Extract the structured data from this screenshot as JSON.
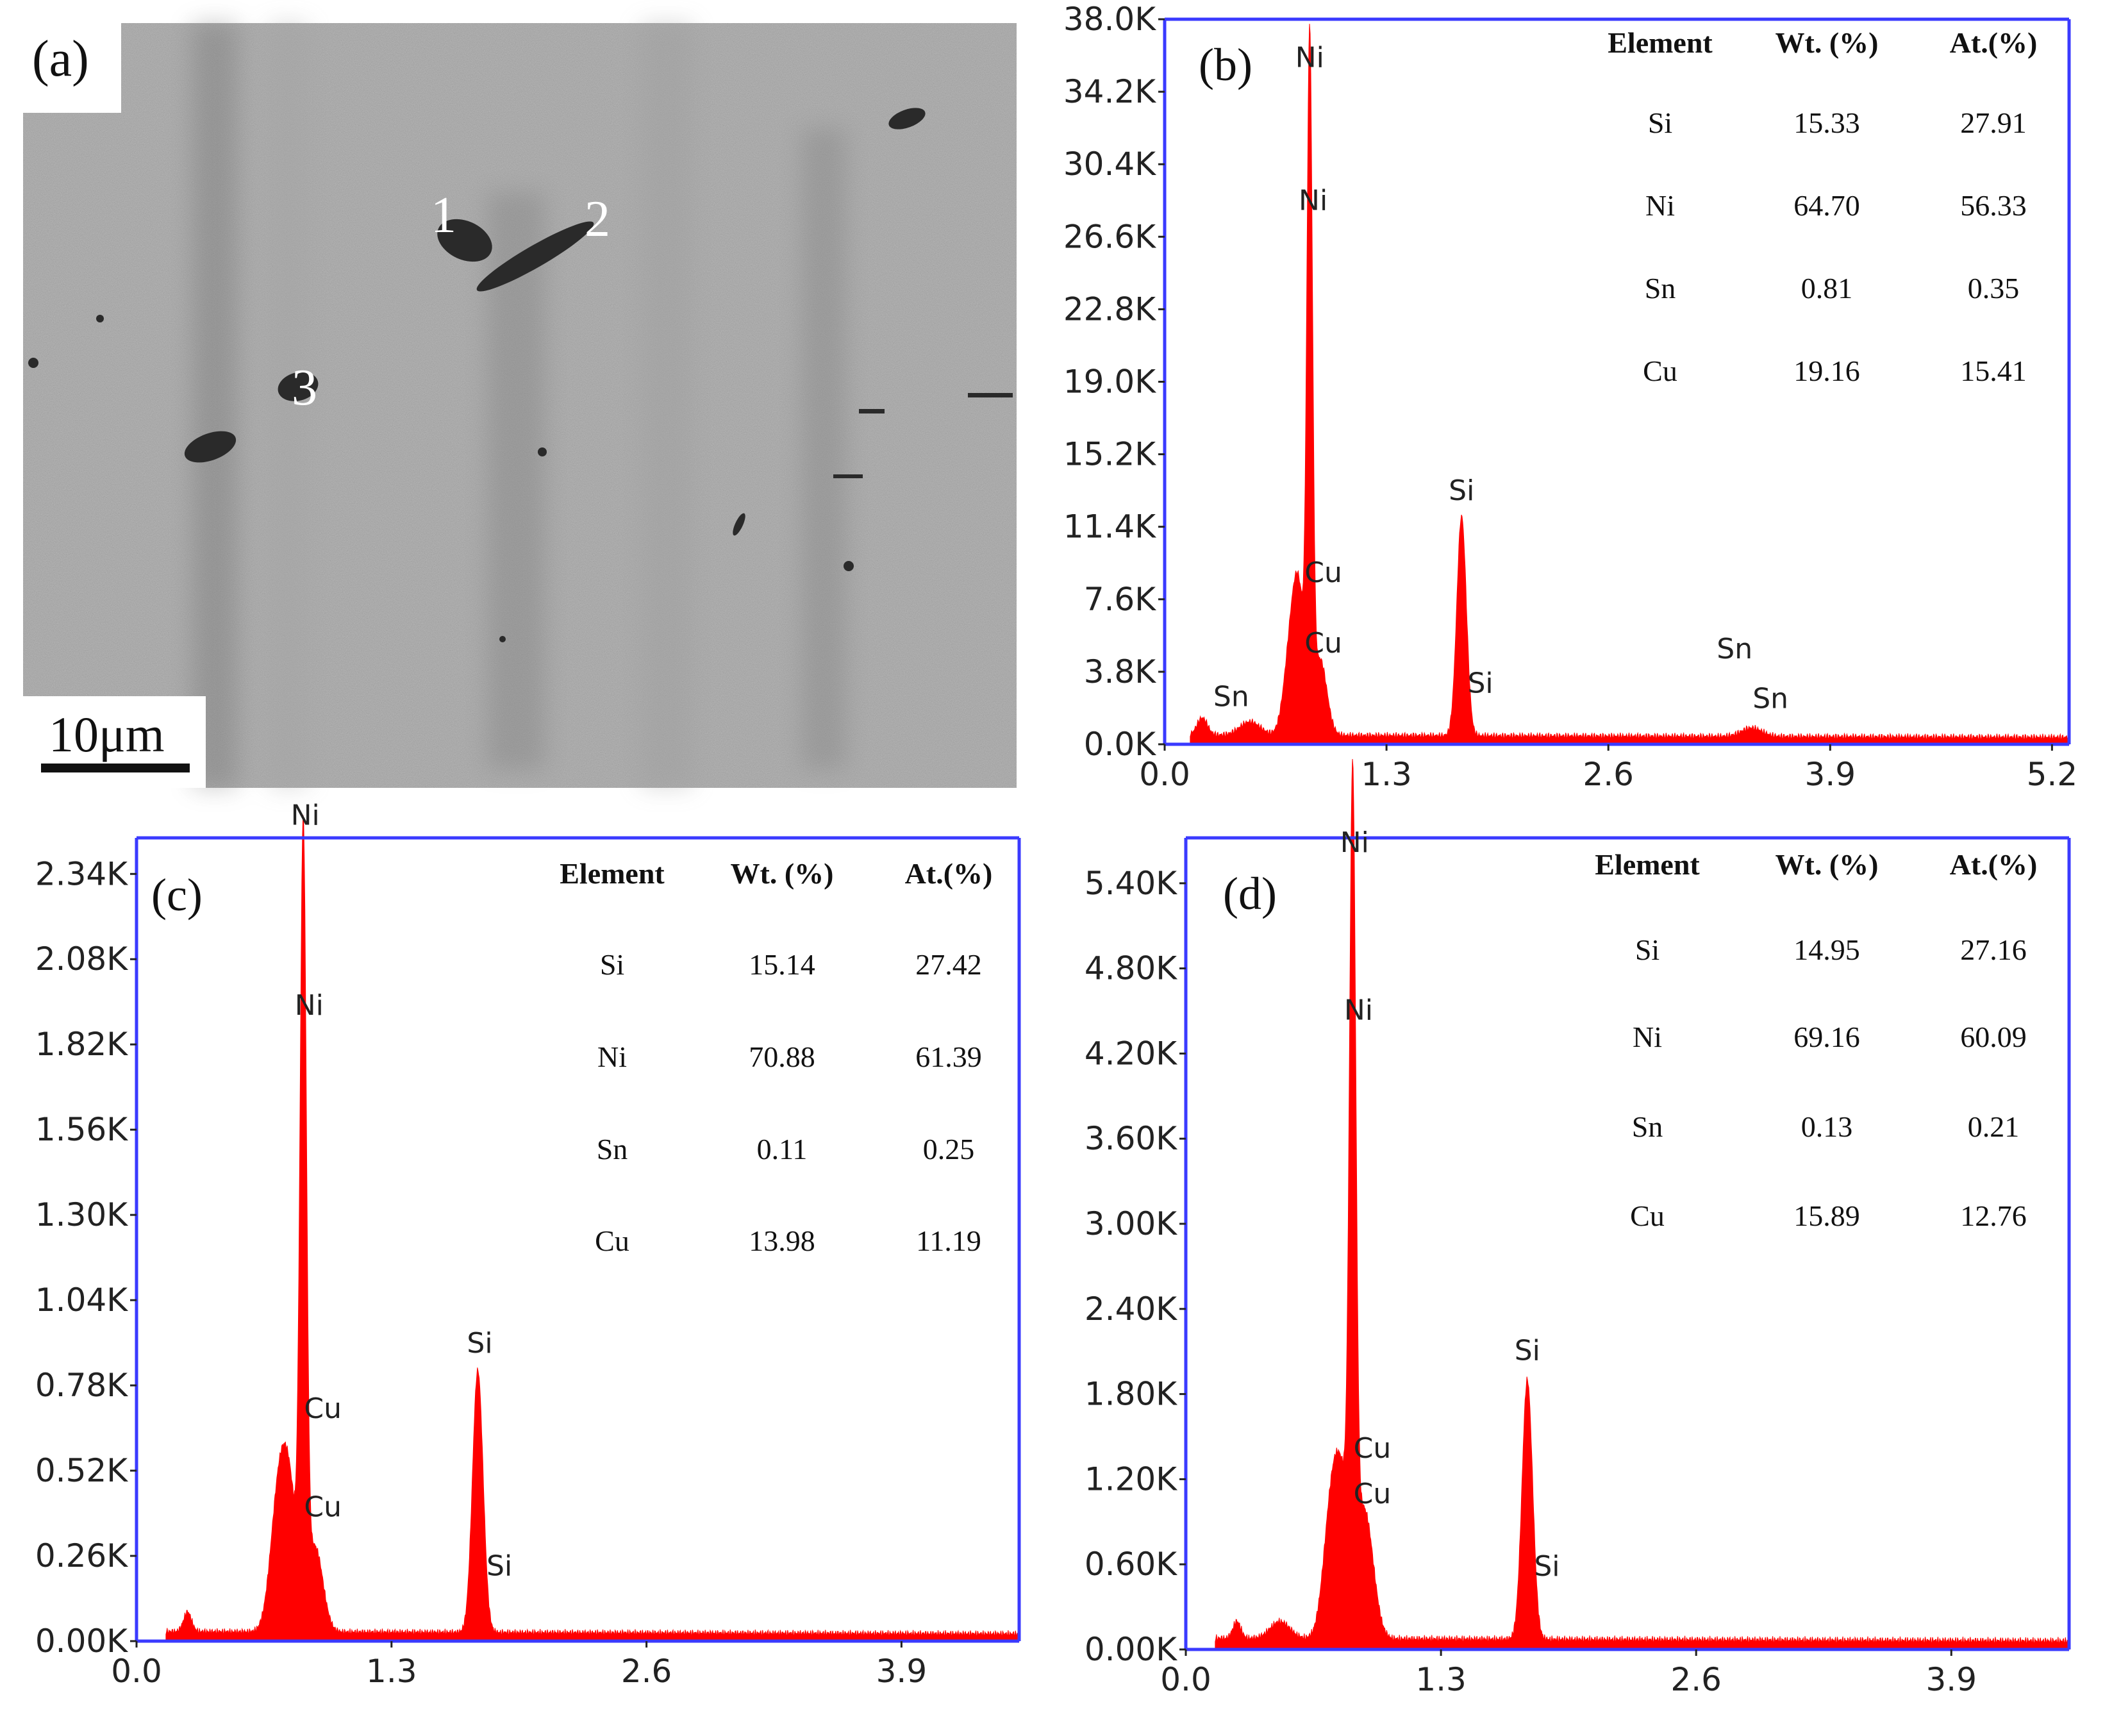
{
  "panel_a": {
    "label": "(a)",
    "scale_bar": "10μm",
    "markers": [
      "1",
      "2",
      "3"
    ]
  },
  "chart_data": [
    {
      "type": "area",
      "panel": "(b)",
      "color": "#ff0000",
      "axis_color": "#3a3aff",
      "xlim": [
        0.0,
        5.3
      ],
      "ylim": [
        0,
        38000
      ],
      "x_ticks": [
        "0.0",
        "1.3",
        "2.6",
        "3.9",
        "5.2"
      ],
      "x_tick_values": [
        0.0,
        1.3,
        2.6,
        3.9,
        5.2
      ],
      "y_ticks": [
        "0.0K",
        "3.8K",
        "7.6K",
        "11.4K",
        "15.2K",
        "19.0K",
        "22.8K",
        "26.6K",
        "30.4K",
        "34.2K",
        "38.0K"
      ],
      "y_tick_values": [
        0,
        3800,
        7600,
        11400,
        15200,
        19000,
        22800,
        26600,
        30400,
        34200,
        38000
      ],
      "peaks": [
        {
          "x": 0.22,
          "y": 900,
          "w": 0.03
        },
        {
          "x": 0.5,
          "y": 700,
          "w": 0.06
        },
        {
          "x": 0.74,
          "y": 4500,
          "w": 0.04
        },
        {
          "x": 0.79,
          "y": 6000,
          "w": 0.035
        },
        {
          "x": 0.85,
          "y": 34500,
          "w": 0.016
        },
        {
          "x": 0.91,
          "y": 4000,
          "w": 0.04
        },
        {
          "x": 1.74,
          "y": 11500,
          "w": 0.028
        },
        {
          "x": 3.44,
          "y": 450,
          "w": 0.06
        }
      ],
      "baseline": 500,
      "peak_labels": [
        {
          "text": "Ni",
          "x": 0.85,
          "y": 35500
        },
        {
          "text": "Ni",
          "x": 0.87,
          "y": 28000
        },
        {
          "text": "Cu",
          "x": 0.93,
          "y": 8500
        },
        {
          "text": "Cu",
          "x": 0.93,
          "y": 4800
        },
        {
          "text": "Sn",
          "x": 0.39,
          "y": 2000
        },
        {
          "text": "Si",
          "x": 1.74,
          "y": 12800
        },
        {
          "text": "Si",
          "x": 1.85,
          "y": 2700
        },
        {
          "text": "Sn",
          "x": 3.34,
          "y": 4500
        },
        {
          "text": "Sn",
          "x": 3.55,
          "y": 1900
        }
      ],
      "table": {
        "headers": [
          "Element",
          "Wt. (%)",
          "At.(%)"
        ],
        "rows": [
          [
            "Si",
            "15.33",
            "27.91"
          ],
          [
            "Ni",
            "64.70",
            "56.33"
          ],
          [
            "Sn",
            "0.81",
            "0.35"
          ],
          [
            "Cu",
            "19.16",
            "15.41"
          ]
        ]
      }
    },
    {
      "type": "area",
      "panel": "(c)",
      "color": "#ff0000",
      "axis_color": "#3a3aff",
      "xlim": [
        0.0,
        4.5
      ],
      "ylim": [
        0,
        2450
      ],
      "x_ticks": [
        "0.0",
        "1.3",
        "2.6",
        "3.9"
      ],
      "x_tick_values": [
        0.0,
        1.3,
        2.6,
        3.9
      ],
      "y_ticks": [
        "0.00K",
        "0.26K",
        "0.52K",
        "0.78K",
        "1.04K",
        "1.30K",
        "1.56K",
        "1.82K",
        "2.08K",
        "2.34K"
      ],
      "y_tick_values": [
        0,
        260,
        520,
        780,
        1040,
        1300,
        1560,
        1820,
        2080,
        2340
      ],
      "peaks": [
        {
          "x": 0.26,
          "y": 60,
          "w": 0.02
        },
        {
          "x": 0.72,
          "y": 360,
          "w": 0.04
        },
        {
          "x": 0.78,
          "y": 400,
          "w": 0.04
        },
        {
          "x": 0.85,
          "y": 2320,
          "w": 0.016
        },
        {
          "x": 0.91,
          "y": 260,
          "w": 0.04
        },
        {
          "x": 1.74,
          "y": 800,
          "w": 0.027
        }
      ],
      "baseline": 30,
      "peak_labels": [
        {
          "text": "Ni",
          "x": 0.86,
          "y": 2490
        },
        {
          "text": "Ni",
          "x": 0.88,
          "y": 1910
        },
        {
          "text": "Cu",
          "x": 0.95,
          "y": 680
        },
        {
          "text": "Cu",
          "x": 0.95,
          "y": 380
        },
        {
          "text": "Si",
          "x": 1.75,
          "y": 880
        },
        {
          "text": "Si",
          "x": 1.85,
          "y": 200
        }
      ],
      "table": {
        "headers": [
          "Element",
          "Wt. (%)",
          "At.(%)"
        ],
        "rows": [
          [
            "Si",
            "15.14",
            "27.42"
          ],
          [
            "Ni",
            "70.88",
            "61.39"
          ],
          [
            "Sn",
            "0.11",
            "0.25"
          ],
          [
            "Cu",
            "13.98",
            "11.19"
          ]
        ]
      }
    },
    {
      "type": "area",
      "panel": "(d)",
      "color": "#ff0000",
      "axis_color": "#3a3aff",
      "xlim": [
        0.0,
        4.5
      ],
      "ylim": [
        0,
        5720
      ],
      "x_ticks": [
        "0.0",
        "1.3",
        "2.6",
        "3.9"
      ],
      "x_tick_values": [
        0.0,
        1.3,
        2.6,
        3.9
      ],
      "y_ticks": [
        "0.00K",
        "0.60K",
        "1.20K",
        "1.80K",
        "2.40K",
        "3.00K",
        "3.60K",
        "4.20K",
        "4.80K",
        "5.40K"
      ],
      "y_tick_values": [
        0,
        600,
        1200,
        1800,
        2400,
        3000,
        3600,
        4200,
        4800,
        5400
      ],
      "peaks": [
        {
          "x": 0.26,
          "y": 120,
          "w": 0.02
        },
        {
          "x": 0.48,
          "y": 120,
          "w": 0.05
        },
        {
          "x": 0.74,
          "y": 840,
          "w": 0.04
        },
        {
          "x": 0.8,
          "y": 900,
          "w": 0.04
        },
        {
          "x": 0.85,
          "y": 5400,
          "w": 0.016
        },
        {
          "x": 0.91,
          "y": 900,
          "w": 0.045
        },
        {
          "x": 1.74,
          "y": 1830,
          "w": 0.027
        }
      ],
      "baseline": 80,
      "peak_labels": [
        {
          "text": "Ni",
          "x": 0.86,
          "y": 5620
        },
        {
          "text": "Ni",
          "x": 0.88,
          "y": 4440
        },
        {
          "text": "Cu",
          "x": 0.95,
          "y": 1350
        },
        {
          "text": "Cu",
          "x": 0.95,
          "y": 1030
        },
        {
          "text": "Si",
          "x": 1.74,
          "y": 2040
        },
        {
          "text": "Si",
          "x": 1.84,
          "y": 520
        }
      ],
      "table": {
        "headers": [
          "Element",
          "Wt. (%)",
          "At.(%)"
        ],
        "rows": [
          [
            "Si",
            "14.95",
            "27.16"
          ],
          [
            "Ni",
            "69.16",
            "60.09"
          ],
          [
            "Sn",
            "0.13",
            "0.21"
          ],
          [
            "Cu",
            "15.89",
            "12.76"
          ]
        ]
      }
    }
  ]
}
